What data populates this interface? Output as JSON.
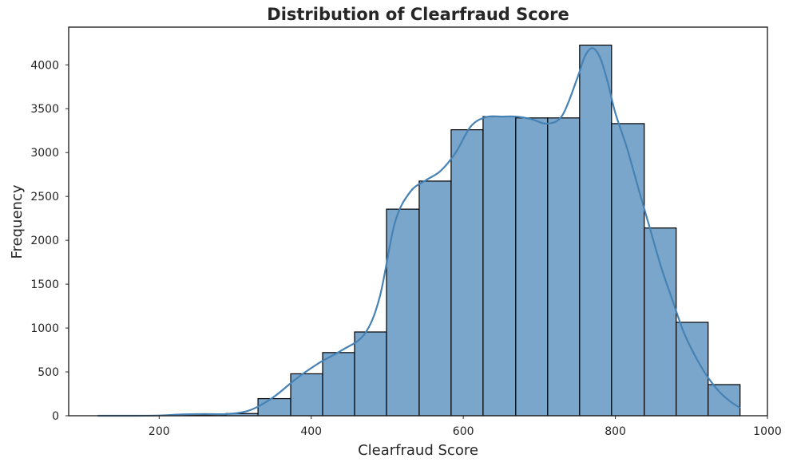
{
  "chart_data": {
    "type": "bar",
    "title": "Distribution of Clearfraud Score",
    "xlabel": "Clearfraud Score",
    "ylabel": "Frequency",
    "xlim": [
      81,
      1000
    ],
    "ylim": [
      0,
      4430
    ],
    "xticks": [
      200,
      400,
      600,
      800,
      1000
    ],
    "yticks": [
      0,
      500,
      1000,
      1500,
      2000,
      2500,
      3000,
      3500,
      4000
    ],
    "bin_edges": [
      119,
      161,
      203,
      246,
      288,
      330,
      373,
      415,
      457,
      499,
      542,
      584,
      626,
      669,
      711,
      753,
      795,
      838,
      880,
      922,
      964
    ],
    "values": [
      0,
      0,
      5,
      10,
      25,
      195,
      478,
      720,
      955,
      2355,
      2675,
      3260,
      3410,
      3395,
      3395,
      4225,
      3330,
      2140,
      1065,
      355
    ],
    "kde": {
      "x": [
        119,
        160,
        200,
        230,
        260,
        290,
        320,
        350,
        380,
        410,
        440,
        470,
        490,
        510,
        530,
        550,
        570,
        590,
        610,
        630,
        650,
        670,
        690,
        710,
        730,
        750,
        760,
        770,
        780,
        790,
        800,
        815,
        830,
        845,
        860,
        875,
        890,
        905,
        920,
        935,
        950,
        964
      ],
      "y": [
        0,
        0,
        3,
        15,
        20,
        20,
        65,
        210,
        420,
        600,
        745,
        930,
        1350,
        2200,
        2550,
        2680,
        2790,
        3000,
        3300,
        3405,
        3410,
        3410,
        3380,
        3330,
        3420,
        3850,
        4100,
        4190,
        4080,
        3800,
        3450,
        3060,
        2600,
        2150,
        1700,
        1320,
        950,
        680,
        460,
        290,
        170,
        90
      ]
    },
    "bar_color": "#7aa6cb",
    "edge_color": "#000000",
    "line_color": "#4682b4",
    "grid": false,
    "legend": "none"
  }
}
